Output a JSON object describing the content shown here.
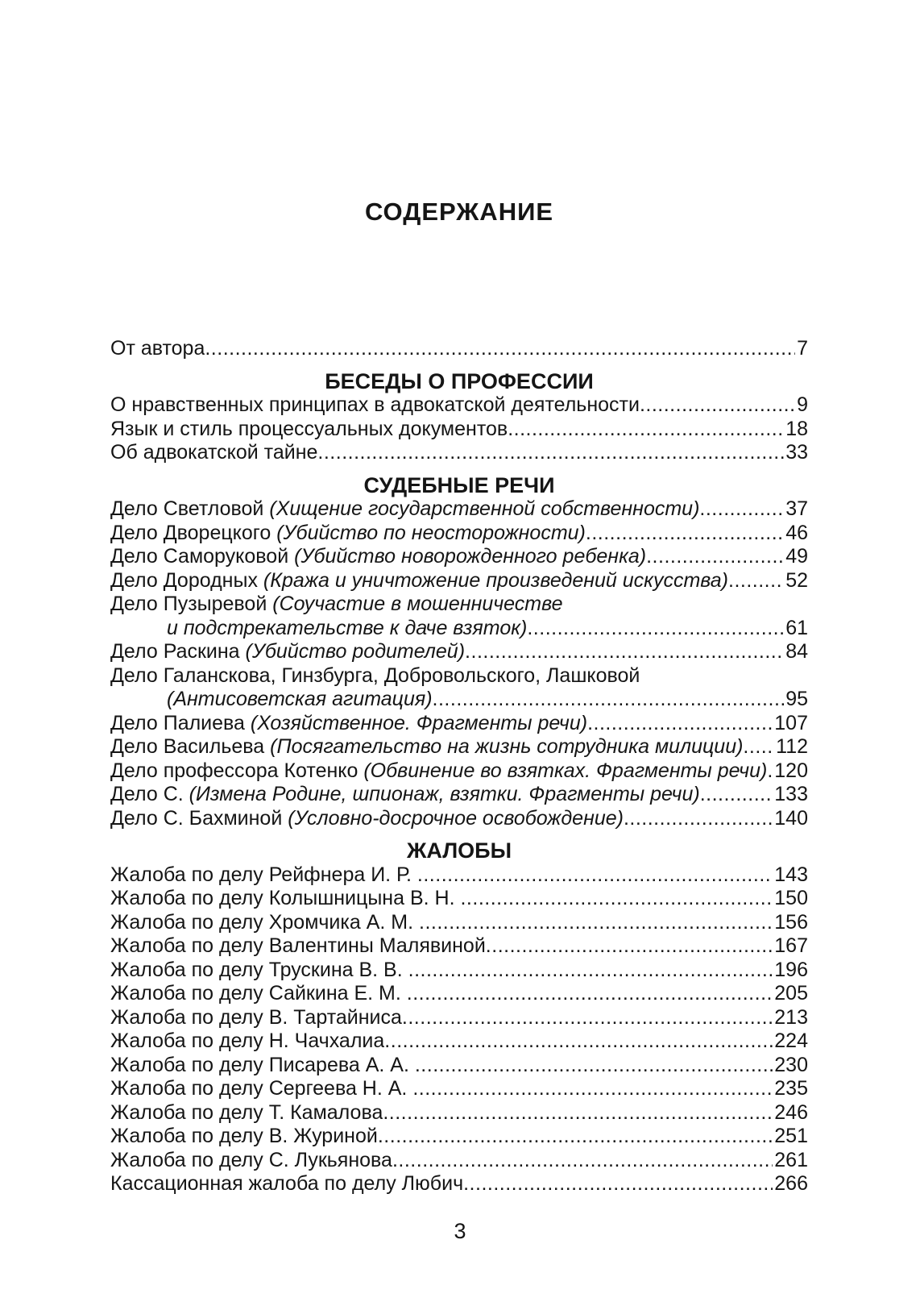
{
  "page": {
    "title": "СОДЕРЖАНИЕ",
    "folio": "3"
  },
  "toc": {
    "front_rows": [
      {
        "parts": [
          {
            "t": "От автора",
            "i": false
          }
        ],
        "page": "7"
      }
    ],
    "sections": [
      {
        "heading": "БЕСЕДЫ О ПРОФЕССИИ",
        "rows": [
          {
            "parts": [
              {
                "t": "О нравственных принципах в адвокатской деятельности",
                "i": false
              }
            ],
            "page": "9"
          },
          {
            "parts": [
              {
                "t": "Язык и стиль процессуальных документов",
                "i": false
              }
            ],
            "page": "18"
          },
          {
            "parts": [
              {
                "t": "Об адвокатской тайне",
                "i": false
              }
            ],
            "page": "33"
          }
        ]
      },
      {
        "heading": "СУДЕБНЫЕ РЕЧИ",
        "rows": [
          {
            "parts": [
              {
                "t": "Дело Светловой ",
                "i": false
              },
              {
                "t": "(Хищение государственной собственности)",
                "i": true
              }
            ],
            "page": "37"
          },
          {
            "parts": [
              {
                "t": "Дело Дворецкого ",
                "i": false
              },
              {
                "t": "(Убийство по неосторожности)",
                "i": true
              }
            ],
            "page": "46"
          },
          {
            "parts": [
              {
                "t": "Дело Саморуковой ",
                "i": false
              },
              {
                "t": "(Убийство новорожденного ребенка)",
                "i": true
              }
            ],
            "page": "49"
          },
          {
            "parts": [
              {
                "t": "Дело Дородных ",
                "i": false
              },
              {
                "t": "(Кража и уничтожение произведений искусства)",
                "i": true
              }
            ],
            "page": "52"
          },
          {
            "parts": [
              {
                "t": "Дело Пузыревой ",
                "i": false
              },
              {
                "t": "(Соучастие в мошенничестве",
                "i": true
              }
            ],
            "page": null
          },
          {
            "indent": true,
            "parts": [
              {
                "t": "и подстрекательстве к даче взяток)",
                "i": true
              }
            ],
            "page": "61"
          },
          {
            "parts": [
              {
                "t": "Дело Раскина ",
                "i": false
              },
              {
                "t": "(Убийство родителей)",
                "i": true
              }
            ],
            "page": "84"
          },
          {
            "parts": [
              {
                "t": "Дело Галанскова, Гинзбурга, Добровольского, Лашковой",
                "i": false
              }
            ],
            "page": null
          },
          {
            "indent": true,
            "parts": [
              {
                "t": "(Антисоветская агитация)",
                "i": true
              }
            ],
            "page": "95"
          },
          {
            "parts": [
              {
                "t": "Дело Палиева ",
                "i": false
              },
              {
                "t": "(Хозяйственное. Фрагменты речи)",
                "i": true
              }
            ],
            "page": "107"
          },
          {
            "parts": [
              {
                "t": "Дело Васильева ",
                "i": false
              },
              {
                "t": "(Посягательство на жизнь сотрудника милиции)",
                "i": true
              }
            ],
            "page": "112"
          },
          {
            "parts": [
              {
                "t": "Дело профессора Котенко ",
                "i": false
              },
              {
                "t": "(Обвинение во взятках. Фрагменты речи)",
                "i": true
              }
            ],
            "page": "120"
          },
          {
            "parts": [
              {
                "t": "Дело С. ",
                "i": false
              },
              {
                "t": "(Измена Родине, шпионаж, взятки. Фрагменты речи)",
                "i": true
              }
            ],
            "page": "133"
          },
          {
            "parts": [
              {
                "t": "Дело С. Бахминой ",
                "i": false
              },
              {
                "t": "(Условно-досрочное освобождение)",
                "i": true
              }
            ],
            "page": "140"
          }
        ]
      },
      {
        "heading": "ЖАЛОБЫ",
        "rows": [
          {
            "parts": [
              {
                "t": "Жалоба по делу Рейфнера И. Р. ",
                "i": false
              }
            ],
            "page": "143"
          },
          {
            "parts": [
              {
                "t": "Жалоба по делу Колышницына В. Н. ",
                "i": false
              }
            ],
            "page": "150"
          },
          {
            "parts": [
              {
                "t": "Жалоба по делу Хромчика А. М. ",
                "i": false
              }
            ],
            "page": "156"
          },
          {
            "parts": [
              {
                "t": "Жалоба по делу Валентины Малявиной",
                "i": false
              }
            ],
            "page": "167"
          },
          {
            "parts": [
              {
                "t": "Жалоба по делу Трускина В. В. ",
                "i": false
              }
            ],
            "page": "196"
          },
          {
            "parts": [
              {
                "t": "Жалоба по делу Сайкина Е. М. ",
                "i": false
              }
            ],
            "page": "205"
          },
          {
            "parts": [
              {
                "t": "Жалоба по делу В. Тартайниса",
                "i": false
              }
            ],
            "page": "213"
          },
          {
            "parts": [
              {
                "t": "Жалоба по делу Н. Чачхалиа",
                "i": false
              }
            ],
            "page": "224"
          },
          {
            "parts": [
              {
                "t": "Жалоба по делу Писарева А. А. ",
                "i": false
              }
            ],
            "page": "230"
          },
          {
            "parts": [
              {
                "t": "Жалоба по делу Сергеева Н. А. ",
                "i": false
              }
            ],
            "page": "235"
          },
          {
            "parts": [
              {
                "t": "Жалоба по делу Т. Камалова",
                "i": false
              }
            ],
            "page": "246"
          },
          {
            "parts": [
              {
                "t": "Жалоба по делу В. Журиной",
                "i": false
              }
            ],
            "page": "251"
          },
          {
            "parts": [
              {
                "t": "Жалоба по делу С. Лукьянова",
                "i": false
              }
            ],
            "page": "261"
          },
          {
            "parts": [
              {
                "t": "Кассационная жалоба по делу Любич",
                "i": false
              }
            ],
            "page": "266"
          }
        ]
      }
    ]
  }
}
